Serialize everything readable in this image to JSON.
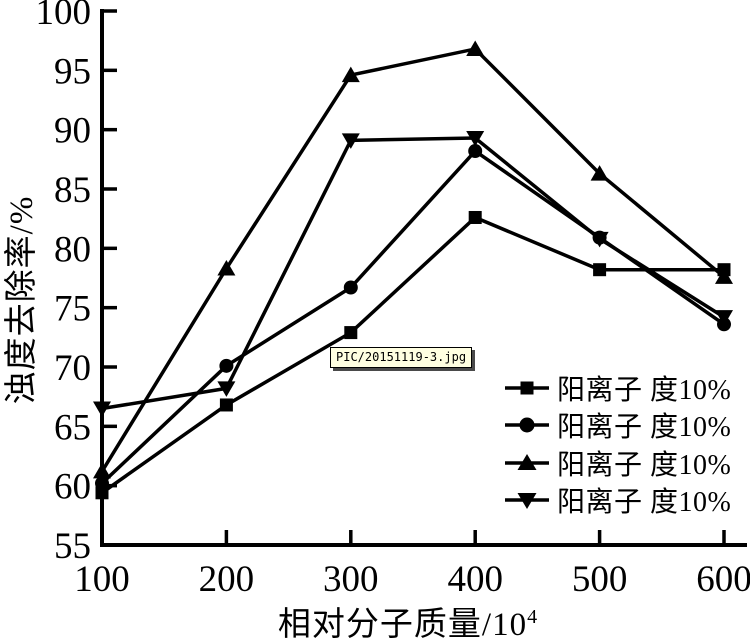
{
  "figure": {
    "background": "#ffffff",
    "ink": "#000000"
  },
  "tooltip": {
    "text": "PIC/20151119-3.jpg",
    "bg": "#ffffe1",
    "border": "#000000"
  },
  "chart_data": {
    "type": "line",
    "title": "",
    "xlabel_base": "相对分子质量/10",
    "xlabel_sup": "4",
    "ylabel": "浊度去除率/%",
    "xlim": [
      100,
      600
    ],
    "ylim": [
      55,
      100
    ],
    "grid": false,
    "legend_position": "inside-right-center",
    "xticks": [
      100,
      200,
      300,
      400,
      500,
      600
    ],
    "yticks": [
      55,
      60,
      65,
      70,
      75,
      80,
      85,
      90,
      95,
      100
    ],
    "x": [
      100,
      200,
      300,
      400,
      500,
      600
    ],
    "series": [
      {
        "name": "阳离子 度10%",
        "marker": "square",
        "color": "#000000",
        "values": [
          59.4,
          66.8,
          72.9,
          82.6,
          78.2,
          78.2
        ]
      },
      {
        "name": "阳离子 度10%",
        "marker": "circle",
        "color": "#000000",
        "values": [
          60.2,
          70.1,
          76.7,
          88.2,
          80.9,
          73.6
        ]
      },
      {
        "name": "阳离子 度10%",
        "marker": "triangle-up",
        "color": "#000000",
        "values": [
          61.2,
          78.3,
          94.6,
          96.8,
          86.3,
          77.6
        ]
      },
      {
        "name": "阳离子 度10%",
        "marker": "triangle-down",
        "color": "#000000",
        "values": [
          66.5,
          68.2,
          89.1,
          89.3,
          80.8,
          74.2
        ]
      }
    ]
  }
}
